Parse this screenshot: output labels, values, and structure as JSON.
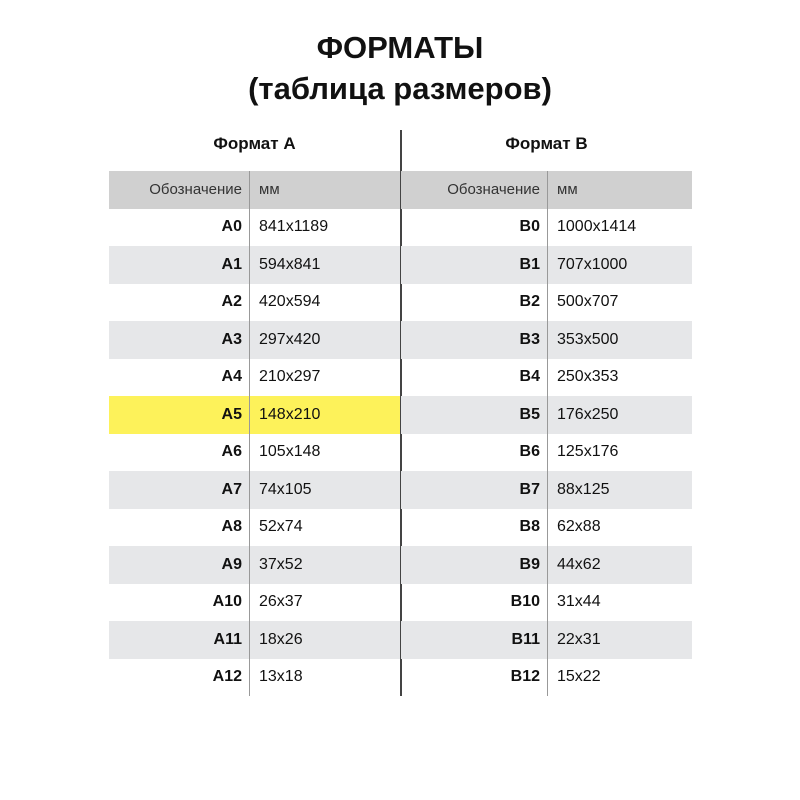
{
  "title": {
    "line1": "ФОРМАТЫ",
    "line2": "(таблица размеров)"
  },
  "colors": {
    "header_bg": "#d0d0d0",
    "stripe": "#e6e7e9",
    "highlight": "#fdf25a"
  },
  "format_a": {
    "heading": "Формат А",
    "col_code": "Обозначение",
    "col_size": "мм",
    "highlighted": "A5",
    "rows": [
      {
        "code": "A0",
        "size": "841x1189"
      },
      {
        "code": "A1",
        "size": "594x841"
      },
      {
        "code": "A2",
        "size": "420x594"
      },
      {
        "code": "A3",
        "size": "297x420"
      },
      {
        "code": "A4",
        "size": "210x297"
      },
      {
        "code": "A5",
        "size": "148x210"
      },
      {
        "code": "A6",
        "size": "105x148"
      },
      {
        "code": "A7",
        "size": "74x105"
      },
      {
        "code": "A8",
        "size": "52x74"
      },
      {
        "code": "A9",
        "size": "37x52"
      },
      {
        "code": "A10",
        "size": "26x37"
      },
      {
        "code": "A11",
        "size": "18x26"
      },
      {
        "code": "A12",
        "size": "13x18"
      }
    ]
  },
  "format_b": {
    "heading": "Формат В",
    "col_code": "Обозначение",
    "col_size": "мм",
    "rows": [
      {
        "code": "B0",
        "size": "1000x1414"
      },
      {
        "code": "B1",
        "size": "707x1000"
      },
      {
        "code": "B2",
        "size": "500x707"
      },
      {
        "code": "B3",
        "size": "353x500"
      },
      {
        "code": "B4",
        "size": "250x353"
      },
      {
        "code": "B5",
        "size": "176x250"
      },
      {
        "code": "B6",
        "size": "125x176"
      },
      {
        "code": "B7",
        "size": "88x125"
      },
      {
        "code": "B8",
        "size": "62x88"
      },
      {
        "code": "B9",
        "size": "44x62"
      },
      {
        "code": "B10",
        "size": "31x44"
      },
      {
        "code": "B11",
        "size": "22x31"
      },
      {
        "code": "B12",
        "size": "15x22"
      }
    ]
  }
}
